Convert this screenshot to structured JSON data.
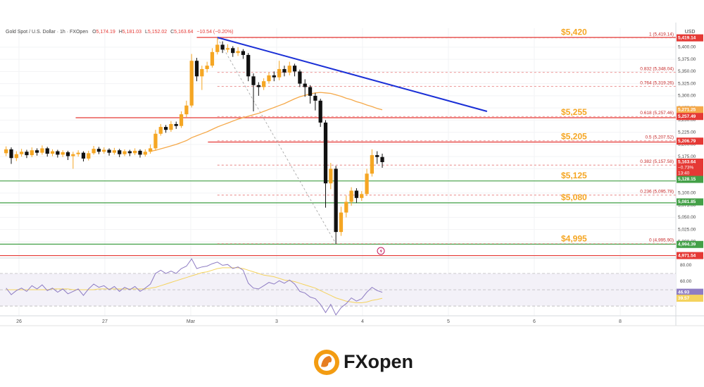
{
  "chart_data": {
    "type": "candlestick",
    "header": {
      "symbol": "Gold Spot / U.S. Dollar · 1h · FXOpen",
      "ohlc": [
        {
          "key": "O",
          "value": "5,174.19"
        },
        {
          "key": "H",
          "value": "5,181.03"
        },
        {
          "key": "L",
          "value": "5,152.02"
        },
        {
          "key": "C",
          "value": "5,163.64"
        }
      ],
      "change": "−10.54 (−0.20%)"
    },
    "currency": "USD",
    "brand": "FXopen",
    "xlim": [
      -0.221,
      7.648
    ],
    "xticks": [
      {
        "value": 0,
        "label": "26"
      },
      {
        "value": 1,
        "label": "27"
      },
      {
        "value": 2,
        "label": "Mar"
      },
      3,
      4,
      5,
      6,
      {
        "value": 7,
        "label": "8"
      }
    ],
    "ylim": [
      4968,
      5439
    ],
    "yticks": [
      {
        "value": 5000,
        "label": "5,000.00"
      },
      {
        "value": 5025,
        "label": "5,025.00"
      },
      {
        "value": 5050,
        "label": "5,050.00"
      },
      {
        "value": 5075,
        "label": "5,075.00"
      },
      {
        "value": 5100,
        "label": "5,100.00"
      },
      {
        "value": 5125,
        "label": "5,125.00"
      },
      {
        "value": 5150,
        "label": "5,150.00"
      },
      {
        "value": 5175,
        "label": "5,175.00"
      },
      {
        "value": 5200,
        "label": "5,200.00"
      },
      {
        "value": 5225,
        "label": "5,225.00"
      },
      {
        "value": 5250,
        "label": "5,250.00"
      },
      {
        "value": 5275,
        "label": "5,275.00"
      },
      {
        "value": 5300,
        "label": "5,300.00"
      },
      {
        "value": 5325,
        "label": "5,325.00"
      },
      {
        "value": 5350,
        "label": "5,350.00"
      },
      {
        "value": 5375,
        "label": "5,375.00"
      },
      {
        "value": 5400,
        "label": "5,400.00"
      }
    ],
    "grid": true,
    "up_color": "#f5a623",
    "down_color": "#111111",
    "x": [
      -0.15,
      -0.09,
      -0.03,
      0.03,
      0.09,
      0.15,
      0.21,
      0.27,
      0.33,
      0.39,
      0.45,
      0.51,
      0.57,
      0.63,
      0.69,
      0.75,
      0.81,
      0.87,
      0.93,
      0.99,
      1.05,
      1.11,
      1.17,
      1.23,
      1.29,
      1.35,
      1.41,
      1.47,
      1.53,
      1.59,
      1.65,
      1.71,
      1.77,
      1.83,
      1.89,
      1.95,
      2.01,
      2.07,
      2.13,
      2.19,
      2.25,
      2.31,
      2.37,
      2.43,
      2.49,
      2.55,
      2.61,
      2.67,
      2.73,
      2.79,
      2.85,
      2.91,
      2.97,
      3.03,
      3.09,
      3.15,
      3.21,
      3.27,
      3.33,
      3.39,
      3.45,
      3.51,
      3.57,
      3.63,
      3.69,
      3.75,
      3.81,
      3.87,
      3.93,
      3.99,
      4.05,
      4.11,
      4.17,
      4.23
    ],
    "open": [
      5182,
      5190,
      5172,
      5180,
      5185,
      5178,
      5188,
      5183,
      5192,
      5181,
      5186,
      5179,
      5184,
      5176,
      5180,
      5183,
      5171,
      5182,
      5191,
      5185,
      5189,
      5183,
      5188,
      5180,
      5186,
      5182,
      5187,
      5179,
      5185,
      5192,
      5222,
      5236,
      5230,
      5242,
      5238,
      5262,
      5280,
      5372,
      5340,
      5355,
      5362,
      5390,
      5405,
      5395,
      5398,
      5388,
      5392,
      5384,
      5340,
      5322,
      5318,
      5330,
      5342,
      5338,
      5355,
      5348,
      5362,
      5350,
      5325,
      5318,
      5300,
      5290,
      5245,
      5120,
      5150,
      5020,
      5060,
      5082,
      5105,
      5090,
      5098,
      5140,
      5178,
      5174.19
    ],
    "high": [
      5196,
      5194,
      5186,
      5191,
      5189,
      5194,
      5192,
      5198,
      5195,
      5190,
      5189,
      5188,
      5187,
      5185,
      5188,
      5186,
      5187,
      5197,
      5195,
      5194,
      5192,
      5193,
      5191,
      5190,
      5189,
      5192,
      5190,
      5190,
      5200,
      5230,
      5242,
      5240,
      5248,
      5247,
      5268,
      5290,
      5386,
      5378,
      5362,
      5370,
      5398,
      5419.14,
      5412,
      5406,
      5402,
      5400,
      5396,
      5388,
      5346,
      5328,
      5336,
      5348,
      5350,
      5372,
      5362,
      5370,
      5366,
      5354,
      5334,
      5322,
      5306,
      5294,
      5250,
      5162,
      5156,
      5072,
      5095,
      5112,
      5110,
      5104,
      5150,
      5190,
      5186,
      5181.03
    ],
    "low": [
      5176,
      5160,
      5166,
      5175,
      5172,
      5174,
      5177,
      5179,
      5175,
      5176,
      5173,
      5174,
      5168,
      5150,
      5175,
      5165,
      5167,
      5179,
      5180,
      5181,
      5177,
      5179,
      5174,
      5176,
      5176,
      5178,
      5173,
      5175,
      5181,
      5188,
      5218,
      5224,
      5226,
      5232,
      5234,
      5255,
      5276,
      5330,
      5312,
      5348,
      5358,
      5385,
      5388,
      5389,
      5380,
      5382,
      5376,
      5330,
      5268,
      5300,
      5312,
      5325,
      5330,
      5332,
      5340,
      5342,
      5340,
      5318,
      5298,
      5284,
      5270,
      5236,
      5070,
      5108,
      4995.9,
      5012,
      5050,
      5074,
      5080,
      5084,
      5094,
      5134,
      5160,
      5152.02
    ],
    "close": [
      5190,
      5172,
      5180,
      5185,
      5178,
      5188,
      5183,
      5192,
      5181,
      5186,
      5179,
      5184,
      5176,
      5180,
      5183,
      5171,
      5182,
      5191,
      5185,
      5189,
      5183,
      5188,
      5180,
      5186,
      5182,
      5187,
      5179,
      5185,
      5192,
      5222,
      5236,
      5230,
      5242,
      5238,
      5262,
      5280,
      5372,
      5340,
      5355,
      5362,
      5390,
      5405,
      5395,
      5398,
      5388,
      5392,
      5384,
      5340,
      5322,
      5318,
      5330,
      5342,
      5338,
      5355,
      5348,
      5362,
      5350,
      5325,
      5318,
      5300,
      5290,
      5245,
      5120,
      5150,
      5020,
      5060,
      5082,
      5105,
      5090,
      5098,
      5140,
      5178,
      5174.19,
      5163.64
    ],
    "moving_average": {
      "color": "#f5a94a",
      "values": [
        null,
        null,
        null,
        null,
        null,
        null,
        null,
        null,
        null,
        null,
        null,
        null,
        null,
        null,
        null,
        null,
        null,
        null,
        null,
        null,
        null,
        null,
        null,
        null,
        null,
        null,
        null,
        null,
        5186,
        5188,
        5191,
        5194,
        5197,
        5200,
        5204,
        5208,
        5214,
        5218,
        5222,
        5226,
        5231,
        5236,
        5240,
        5244,
        5248,
        5252,
        5255,
        5258,
        5261,
        5264,
        5268,
        5272,
        5276,
        5280,
        5284,
        5289,
        5294,
        5298,
        5301,
        5304,
        5306,
        5307,
        5306,
        5305,
        5302,
        5299,
        5295,
        5292,
        5288,
        5285,
        5281,
        5278,
        5274,
        5271.25
      ]
    },
    "trendline": {
      "color": "#1a2fd6",
      "x": [
        2.31,
        5.45
      ],
      "y": [
        5420,
        5268
      ]
    },
    "fib_anchor": {
      "color": "#9e9e9e",
      "x": [
        2.31,
        3.69
      ],
      "y": [
        5419.14,
        4995.9
      ]
    },
    "levels": [
      {
        "value": 5420,
        "label": "$5,420",
        "color": "#e53935",
        "x0": 2.07
      },
      {
        "value": 5255,
        "label": "$5,255",
        "color": "#e53935",
        "x0": 0.66
      },
      {
        "value": 5205,
        "label": "$5,205",
        "color": "#e53935",
        "x0": 2.2
      },
      {
        "value": 5125,
        "label": "$5,125",
        "color": "#43a047",
        "x0": -0.221
      },
      {
        "value": 5080,
        "label": "$5,080",
        "color": "#43a047",
        "x0": -0.221
      },
      {
        "value": 4995,
        "label": "$4,995",
        "color": "#43a047",
        "x0": -0.221
      }
    ],
    "support_line": {
      "value": 4971.54,
      "color": "#e53935"
    },
    "level_label_color": "#f5a623",
    "fibs": [
      {
        "value": 5419.14,
        "label": "1 (5,419.14)"
      },
      {
        "value": 5348.04,
        "label": "0.832 (5,348.04)"
      },
      {
        "value": 5319.26,
        "label": "0.764 (5,319.26)"
      },
      {
        "value": 5257.46,
        "label": "0.618 (5,257.46)"
      },
      {
        "value": 5207.52,
        "label": "0.5 (5,207.52)"
      },
      {
        "value": 5157.58,
        "label": "0.382 (5,157.58)"
      },
      {
        "value": 5095.78,
        "label": "0.236 (5,095.78)"
      },
      {
        "value": 4995.9,
        "label": "0 (4,995.90)"
      }
    ],
    "fib_x0": 2.31,
    "fib_color": "#e57373",
    "tags": [
      {
        "value": 5419.14,
        "label": "5,419.14",
        "color": "#e53935"
      },
      {
        "value": 5271.25,
        "label": "5,271.25",
        "color": "#f5a94a"
      },
      {
        "value": 5257.49,
        "label": "5,257.49",
        "color": "#e53935"
      },
      {
        "value": 5206.79,
        "label": "5,206.79",
        "color": "#e53935"
      },
      {
        "value": 5163.64,
        "label": "5,163.64",
        "color": "#e53935",
        "lines": [
          "−0.73%",
          "13:40"
        ]
      },
      {
        "value": 5128.15,
        "label": "5,128.15",
        "color": "#43a047"
      },
      {
        "value": 5081.85,
        "label": "5,081.85",
        "color": "#43a047"
      },
      {
        "value": 4994.39,
        "label": "4,994.39",
        "color": "#43a047"
      },
      {
        "value": 4971.54,
        "label": "4,971.54",
        "color": "#e53935"
      }
    ],
    "rsi": {
      "ylim": [
        18,
        89
      ],
      "yticks": [
        {
          "value": 40,
          "label": "40.00"
        },
        {
          "value": 60,
          "label": "60.00"
        },
        {
          "value": 80,
          "label": "80.00"
        }
      ],
      "bands": [
        70,
        50,
        30
      ],
      "color": "#8e7cc3",
      "values": [
        52,
        44,
        49,
        52,
        48,
        55,
        51,
        56,
        49,
        52,
        47,
        51,
        45,
        48,
        51,
        43,
        51,
        57,
        53,
        55,
        50,
        54,
        48,
        53,
        50,
        54,
        48,
        52,
        57,
        70,
        74,
        70,
        73,
        70,
        76,
        79,
        88,
        76,
        78,
        79,
        82,
        84,
        80,
        81,
        76,
        78,
        74,
        58,
        52,
        51,
        55,
        59,
        57,
        61,
        58,
        62,
        57,
        48,
        46,
        41,
        39,
        32,
        22,
        32,
        19,
        28,
        33,
        40,
        36,
        39,
        47,
        53,
        49,
        46.93
      ],
      "ma_color": "#f4d35e",
      "ma_values": [
        50,
        50,
        50,
        50,
        50,
        50,
        50,
        50,
        50,
        51,
        51,
        51,
        51,
        50,
        50,
        50,
        50,
        50,
        51,
        51,
        51,
        51,
        51,
        51,
        51,
        51,
        51,
        51,
        52,
        53,
        55,
        57,
        59,
        61,
        63,
        65,
        67,
        69,
        71,
        72,
        74,
        76,
        77,
        77,
        77,
        77,
        76,
        74,
        72,
        70,
        68,
        67,
        66,
        64,
        62,
        61,
        60,
        58,
        56,
        54,
        52,
        49,
        46,
        43,
        40,
        38,
        36,
        35,
        34,
        34,
        35,
        37,
        38,
        39.57
      ],
      "tags": [
        {
          "value": 46.93,
          "label": "46.93",
          "color": "#8e7cc3"
        },
        {
          "value": 39.57,
          "label": "39.57",
          "color": "#f4d35e"
        }
      ]
    }
  }
}
